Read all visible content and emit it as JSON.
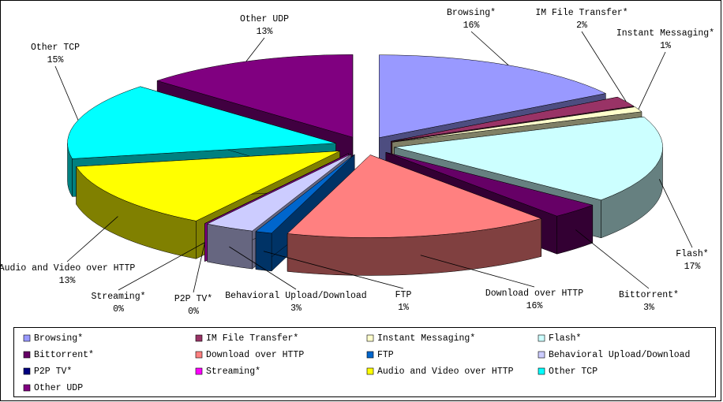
{
  "chart_data": {
    "type": "pie",
    "categories": [
      "Browsing*",
      "IM File Transfer*",
      "Instant Messaging*",
      "Flash*",
      "Bittorrent*",
      "Download over HTTP",
      "FTP",
      "Behavioral Upload/Download",
      "P2P TV*",
      "Streaming*",
      "Audio and Video over HTTP",
      "Other TCP",
      "Other UDP"
    ],
    "values": [
      16,
      2,
      1,
      17,
      3,
      16,
      1,
      3,
      0,
      0,
      13,
      15,
      13
    ],
    "value_labels": [
      "16%",
      "2%",
      "1%",
      "17%",
      "3%",
      "16%",
      "1%",
      "3%",
      "0%",
      "0%",
      "13%",
      "15%",
      "13%"
    ],
    "colors": [
      "#9999ff",
      "#993366",
      "#ffffcc",
      "#ccffff",
      "#660066",
      "#ff8080",
      "#0066cc",
      "#ccccff",
      "#000080",
      "#ff00ff",
      "#ffff00",
      "#00ffff",
      "#800080"
    ],
    "legend": "bottom"
  }
}
